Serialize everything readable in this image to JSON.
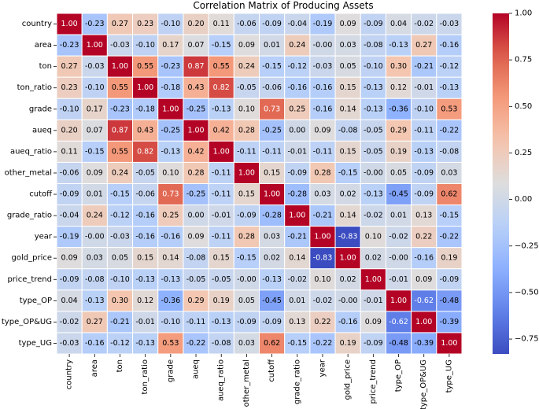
{
  "chart_data": {
    "type": "heatmap",
    "title": "Correlation Matrix of Producing Assets",
    "labels": [
      "country",
      "area",
      "ton",
      "ton_ratio",
      "grade",
      "aueq",
      "aueq_ratio",
      "other_metal",
      "cutoff",
      "grade_ratio",
      "year",
      "gold_price",
      "price_trend",
      "type_OP",
      "type_OP&UG",
      "type_UG"
    ],
    "values": [
      [
        "1.00",
        "-0.23",
        "0.27",
        "0.23",
        "-0.10",
        "0.20",
        "0.11",
        "-0.06",
        "-0.09",
        "-0.04",
        "-0.19",
        "0.09",
        "-0.09",
        "0.04",
        "-0.02",
        "-0.03"
      ],
      [
        "-0.23",
        "1.00",
        "-0.03",
        "-0.10",
        "0.17",
        "0.07",
        "-0.15",
        "0.09",
        "0.01",
        "0.24",
        "-0.00",
        "0.03",
        "-0.08",
        "-0.13",
        "0.27",
        "-0.16"
      ],
      [
        "0.27",
        "-0.03",
        "1.00",
        "0.55",
        "-0.23",
        "0.87",
        "0.55",
        "0.24",
        "-0.15",
        "-0.12",
        "-0.03",
        "0.05",
        "-0.10",
        "0.30",
        "-0.21",
        "-0.12"
      ],
      [
        "0.23",
        "-0.10",
        "0.55",
        "1.00",
        "-0.18",
        "0.43",
        "0.82",
        "-0.05",
        "-0.06",
        "-0.16",
        "-0.16",
        "0.15",
        "-0.13",
        "0.12",
        "-0.01",
        "-0.13"
      ],
      [
        "-0.10",
        "0.17",
        "-0.23",
        "-0.18",
        "1.00",
        "-0.25",
        "-0.13",
        "0.10",
        "0.73",
        "0.25",
        "-0.16",
        "0.14",
        "-0.13",
        "-0.36",
        "-0.10",
        "0.53"
      ],
      [
        "0.20",
        "0.07",
        "0.87",
        "0.43",
        "-0.25",
        "1.00",
        "0.42",
        "0.28",
        "-0.25",
        "0.00",
        "0.09",
        "-0.08",
        "-0.05",
        "0.29",
        "-0.11",
        "-0.22"
      ],
      [
        "0.11",
        "-0.15",
        "0.55",
        "0.82",
        "-0.13",
        "0.42",
        "1.00",
        "-0.11",
        "-0.11",
        "-0.01",
        "-0.11",
        "0.15",
        "-0.05",
        "0.19",
        "-0.13",
        "-0.08"
      ],
      [
        "-0.06",
        "0.09",
        "0.24",
        "-0.05",
        "0.10",
        "0.28",
        "-0.11",
        "1.00",
        "0.15",
        "-0.09",
        "0.28",
        "-0.15",
        "-0.00",
        "0.05",
        "-0.09",
        "0.03"
      ],
      [
        "-0.09",
        "0.01",
        "-0.15",
        "-0.06",
        "0.73",
        "-0.25",
        "-0.11",
        "0.15",
        "1.00",
        "-0.28",
        "0.03",
        "0.02",
        "-0.13",
        "-0.45",
        "-0.09",
        "0.62"
      ],
      [
        "-0.04",
        "0.24",
        "-0.12",
        "-0.16",
        "0.25",
        "0.00",
        "-0.01",
        "-0.09",
        "-0.28",
        "1.00",
        "-0.21",
        "0.14",
        "-0.02",
        "0.01",
        "0.13",
        "-0.15"
      ],
      [
        "-0.19",
        "-0.00",
        "-0.03",
        "-0.16",
        "-0.16",
        "0.09",
        "-0.11",
        "0.28",
        "0.03",
        "-0.21",
        "1.00",
        "-0.83",
        "0.10",
        "-0.02",
        "0.22",
        "-0.22"
      ],
      [
        "0.09",
        "0.03",
        "0.05",
        "0.15",
        "0.14",
        "-0.08",
        "0.15",
        "-0.15",
        "0.02",
        "0.14",
        "-0.83",
        "1.00",
        "0.02",
        "-0.00",
        "-0.16",
        "0.19"
      ],
      [
        "-0.09",
        "-0.08",
        "-0.10",
        "-0.13",
        "-0.13",
        "-0.05",
        "-0.05",
        "-0.00",
        "-0.13",
        "-0.02",
        "0.10",
        "0.02",
        "1.00",
        "-0.01",
        "0.09",
        "-0.09"
      ],
      [
        "0.04",
        "-0.13",
        "0.30",
        "0.12",
        "-0.36",
        "0.29",
        "0.19",
        "0.05",
        "-0.45",
        "0.01",
        "-0.02",
        "-0.00",
        "-0.01",
        "1.00",
        "-0.62",
        "-0.48"
      ],
      [
        "-0.02",
        "0.27",
        "-0.21",
        "-0.01",
        "-0.10",
        "-0.11",
        "-0.13",
        "-0.09",
        "-0.09",
        "0.13",
        "0.22",
        "-0.16",
        "0.09",
        "-0.62",
        "1.00",
        "-0.39"
      ],
      [
        "-0.03",
        "-0.16",
        "-0.12",
        "-0.13",
        "0.53",
        "-0.22",
        "-0.08",
        "0.03",
        "0.62",
        "-0.15",
        "-0.22",
        "0.19",
        "-0.09",
        "-0.48",
        "-0.39",
        "1.00"
      ]
    ],
    "colorbar": {
      "colormap": "coolwarm",
      "ticks": [
        "1.00",
        "0.75",
        "0.50",
        "0.25",
        "0.00",
        "-0.25",
        "-0.50",
        "-0.75"
      ],
      "vmin": -0.83,
      "vmax": 1.0
    },
    "annotations": "cell values shown"
  }
}
